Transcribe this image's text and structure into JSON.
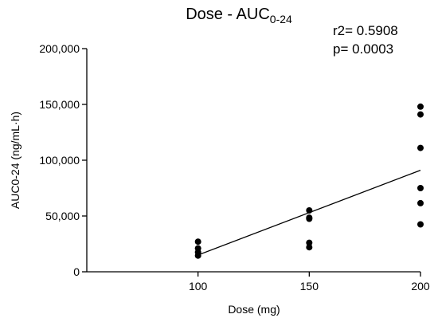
{
  "chart_data": {
    "type": "scatter",
    "title": "Dose - AUC",
    "title_subscript": "0-24",
    "xlabel": "Dose (mg)",
    "ylabel": "AUC0-24 (ng/mL·h)",
    "annotations": [
      "r2= 0.5908",
      "p= 0.0003"
    ],
    "xlim": [
      50,
      200
    ],
    "ylim": [
      0,
      200000
    ],
    "x_ticks": [
      100,
      150,
      200
    ],
    "x_tick_labels": [
      "100",
      "150",
      "200"
    ],
    "y_ticks": [
      0,
      50000,
      100000,
      150000,
      200000
    ],
    "y_tick_labels": [
      "0",
      "50,000",
      "100,000",
      "150,000",
      "200,000"
    ],
    "grid": false,
    "colors": {
      "points": "#000000",
      "line": "#000000"
    },
    "points": [
      {
        "x": 100,
        "y": 27000
      },
      {
        "x": 100,
        "y": 21000
      },
      {
        "x": 100,
        "y": 17500
      },
      {
        "x": 100,
        "y": 14500
      },
      {
        "x": 150,
        "y": 55000
      },
      {
        "x": 150,
        "y": 48500
      },
      {
        "x": 150,
        "y": 47500
      },
      {
        "x": 150,
        "y": 26000
      },
      {
        "x": 150,
        "y": 22000
      },
      {
        "x": 200,
        "y": 148000
      },
      {
        "x": 200,
        "y": 141000
      },
      {
        "x": 200,
        "y": 111000
      },
      {
        "x": 200,
        "y": 75000
      },
      {
        "x": 200,
        "y": 61500
      },
      {
        "x": 200,
        "y": 42500
      }
    ],
    "regression_line": {
      "x": [
        100,
        200
      ],
      "y": [
        15000,
        91000
      ]
    }
  }
}
